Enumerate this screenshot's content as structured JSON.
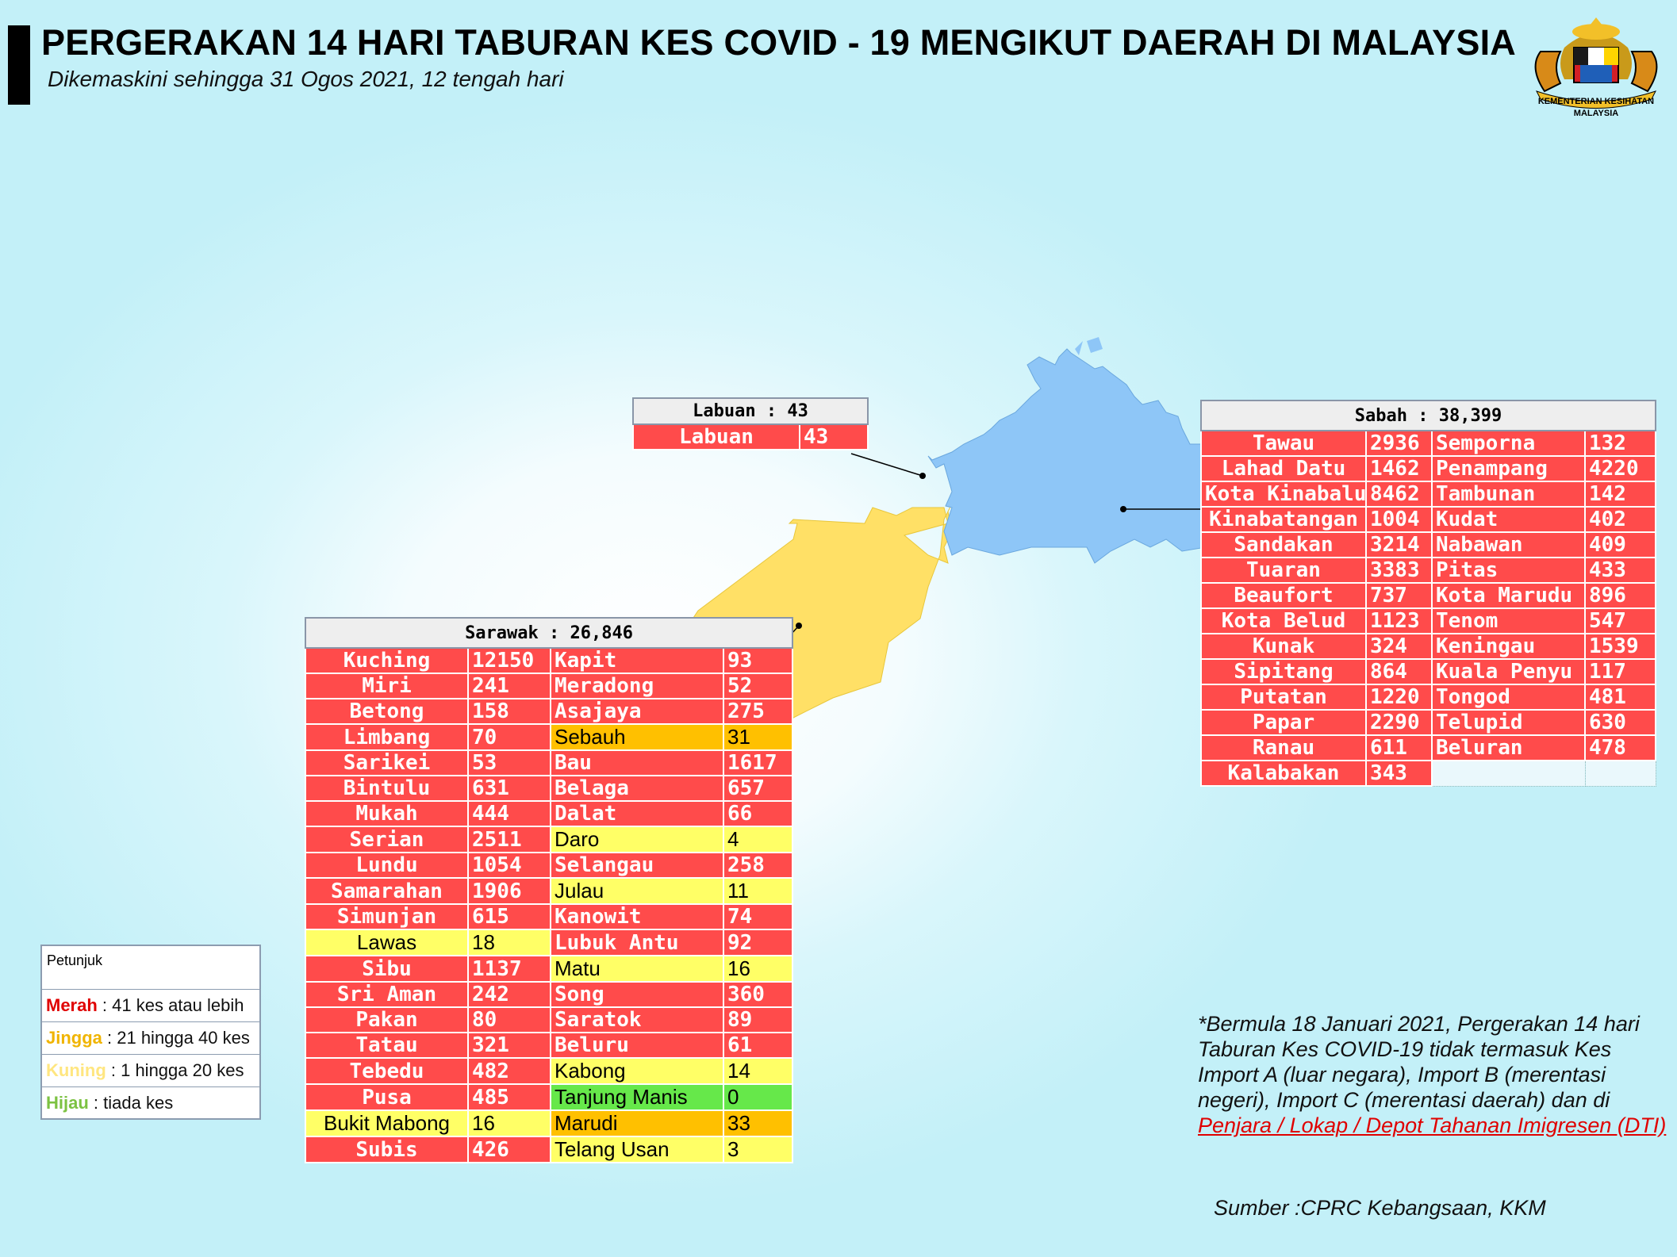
{
  "header": {
    "title": "PERGERAKAN 14 HARI TABURAN KES COVID - 19 MENGIKUT DAERAH DI MALAYSIA",
    "subtitle": "Dikemaskini sehingga 31 Ogos 2021, 12 tengah hari",
    "logo_text_1": "KEMENTERIAN KESIHATAN",
    "logo_text_2": "MALAYSIA"
  },
  "colors": {
    "merah": "#ff4b4b",
    "jingga": "#ffc000",
    "kuning": "#ffff66",
    "hijau": "#66e84a",
    "sabah_map": "#8ec6f7",
    "sarawak_map": "#ffe066"
  },
  "labuan": {
    "title": "Labuan : 43",
    "rows": [
      [
        "Labuan",
        "43",
        "red"
      ]
    ]
  },
  "sabah": {
    "title": "Sabah : 38,399",
    "rows": [
      [
        [
          "Tawau",
          "2936",
          "red"
        ],
        [
          "Semporna",
          "132",
          "red"
        ]
      ],
      [
        [
          "Lahad Datu",
          "1462",
          "red"
        ],
        [
          "Penampang",
          "4220",
          "red"
        ]
      ],
      [
        [
          "Kota Kinabalu",
          "8462",
          "red"
        ],
        [
          "Tambunan",
          "142",
          "red"
        ]
      ],
      [
        [
          "Kinabatangan",
          "1004",
          "red"
        ],
        [
          "Kudat",
          "402",
          "red"
        ]
      ],
      [
        [
          "Sandakan",
          "3214",
          "red"
        ],
        [
          "Nabawan",
          "409",
          "red"
        ]
      ],
      [
        [
          "Tuaran",
          "3383",
          "red"
        ],
        [
          "Pitas",
          "433",
          "red"
        ]
      ],
      [
        [
          "Beaufort",
          "737",
          "red"
        ],
        [
          "Kota Marudu",
          "896",
          "red"
        ]
      ],
      [
        [
          "Kota Belud",
          "1123",
          "red"
        ],
        [
          "Tenom",
          "547",
          "red"
        ]
      ],
      [
        [
          "Kunak",
          "324",
          "red"
        ],
        [
          "Keningau",
          "1539",
          "red"
        ]
      ],
      [
        [
          "Sipitang",
          "864",
          "red"
        ],
        [
          "Kuala Penyu",
          "117",
          "red"
        ]
      ],
      [
        [
          "Putatan",
          "1220",
          "red"
        ],
        [
          "Tongod",
          "481",
          "red"
        ]
      ],
      [
        [
          "Papar",
          "2290",
          "red"
        ],
        [
          "Telupid",
          "630",
          "red"
        ]
      ],
      [
        [
          "Ranau",
          "611",
          "red"
        ],
        [
          "Beluran",
          "478",
          "red"
        ]
      ],
      [
        [
          "Kalabakan",
          "343",
          "red"
        ],
        null
      ]
    ]
  },
  "sarawak": {
    "title": "Sarawak : 26,846",
    "rows": [
      [
        [
          "Kuching",
          "12150",
          "red"
        ],
        [
          "Kapit",
          "93",
          "red"
        ]
      ],
      [
        [
          "Miri",
          "241",
          "red"
        ],
        [
          "Meradong",
          "52",
          "red"
        ]
      ],
      [
        [
          "Betong",
          "158",
          "red"
        ],
        [
          "Asajaya",
          "275",
          "red"
        ]
      ],
      [
        [
          "Limbang",
          "70",
          "red"
        ],
        [
          "Sebauh",
          "31",
          "orange"
        ]
      ],
      [
        [
          "Sarikei",
          "53",
          "red"
        ],
        [
          "Bau",
          "1617",
          "red"
        ]
      ],
      [
        [
          "Bintulu",
          "631",
          "red"
        ],
        [
          "Belaga",
          "657",
          "red"
        ]
      ],
      [
        [
          "Mukah",
          "444",
          "red"
        ],
        [
          "Dalat",
          "66",
          "red"
        ]
      ],
      [
        [
          "Serian",
          "2511",
          "red"
        ],
        [
          "Daro",
          "4",
          "yellow"
        ]
      ],
      [
        [
          "Lundu",
          "1054",
          "red"
        ],
        [
          "Selangau",
          "258",
          "red"
        ]
      ],
      [
        [
          "Samarahan",
          "1906",
          "red"
        ],
        [
          "Julau",
          "11",
          "yellow"
        ]
      ],
      [
        [
          "Simunjan",
          "615",
          "red"
        ],
        [
          "Kanowit",
          "74",
          "red"
        ]
      ],
      [
        [
          "Lawas",
          "18",
          "yellow"
        ],
        [
          "Lubuk Antu",
          "92",
          "red"
        ]
      ],
      [
        [
          "Sibu",
          "1137",
          "red"
        ],
        [
          "Matu",
          "16",
          "yellow"
        ]
      ],
      [
        [
          "Sri Aman",
          "242",
          "red"
        ],
        [
          "Song",
          "360",
          "red"
        ]
      ],
      [
        [
          "Pakan",
          "80",
          "red"
        ],
        [
          "Saratok",
          "89",
          "red"
        ]
      ],
      [
        [
          "Tatau",
          "321",
          "red"
        ],
        [
          "Beluru",
          "61",
          "red"
        ]
      ],
      [
        [
          "Tebedu",
          "482",
          "red"
        ],
        [
          "Kabong",
          "14",
          "yellow"
        ]
      ],
      [
        [
          "Pusa",
          "485",
          "red"
        ],
        [
          "Tanjung Manis",
          "0",
          "green"
        ]
      ],
      [
        [
          "Bukit Mabong",
          "16",
          "yellow"
        ],
        [
          "Marudi",
          "33",
          "orange"
        ]
      ],
      [
        [
          "Subis",
          "426",
          "red"
        ],
        [
          "Telang Usan",
          "3",
          "yellow"
        ]
      ]
    ]
  },
  "legend": {
    "heading": "Petunjuk",
    "items": [
      {
        "key": "Merah",
        "text": " : 41 kes atau lebih",
        "color": "#e00000"
      },
      {
        "key": "Jingga",
        "text": " : 21 hingga 40 kes",
        "color": "#f0b400"
      },
      {
        "key": "Kuning",
        "text": " : 1 hingga 20 kes",
        "color": "#ffe680"
      },
      {
        "key": "Hijau",
        "text": " : tiada kes",
        "color": "#7cc242"
      }
    ]
  },
  "note": {
    "text": "*Bermula 18 Januari 2021, Pergerakan 14 hari Taburan Kes COVID-19 tidak termasuk Kes Import A (luar negara), Import B (merentasi negeri), Import C (merentasi daerah) dan di ",
    "link": "Penjara / Lokap / Depot Tahanan Imigresen (DTI)"
  },
  "source": "Sumber :CPRC Kebangsaan,  KKM"
}
